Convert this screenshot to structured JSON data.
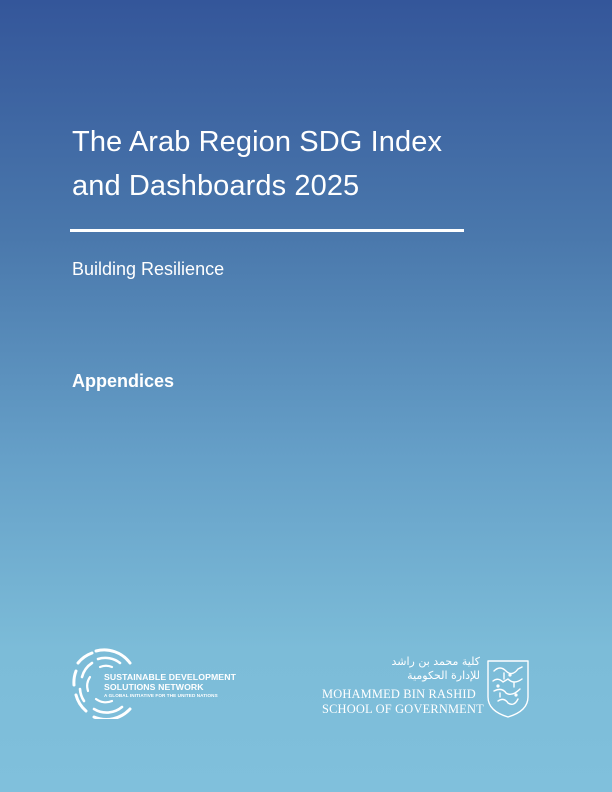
{
  "cover": {
    "title_lines": [
      "The Arab Region SDG Index",
      "and Dashboards 2025"
    ],
    "subtitle": "Building Resilience",
    "section": "Appendices"
  },
  "logos": {
    "sdsn": {
      "lines": [
        "SUSTAINABLE DEVELOPMENT",
        "SOLUTIONS NETWORK"
      ],
      "tagline": "A GLOBAL INITIATIVE FOR THE UNITED NATIONS",
      "icon": "sdsn-circle-logo"
    },
    "mbrsg": {
      "arabic_lines": [
        "كلية محمد بن راشد",
        "للإدارة الحكومية"
      ],
      "english_lines": [
        "MOHAMMED BIN RASHID",
        "SCHOOL OF GOVERNMENT"
      ],
      "icon": "mbrsg-calligraphy-emblem"
    }
  },
  "colors": {
    "gradient_top": "#34569a",
    "gradient_bottom": "#80c0dc",
    "text": "#ffffff"
  }
}
